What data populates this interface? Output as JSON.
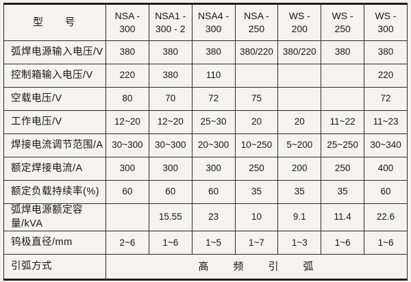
{
  "table": {
    "header": {
      "label": "型　　号",
      "columns": [
        "NSA -\n300",
        "NSA1 -\n300 - 2",
        "NSA4 -\n300",
        "NSA -\n250",
        "WS -\n200",
        "WS -\n250",
        "WS -\n300"
      ]
    },
    "rows": [
      {
        "label": "弧焊电源输入电压/V",
        "values": [
          "380",
          "380",
          "380",
          "380/220",
          "380/220",
          "380",
          "380"
        ]
      },
      {
        "label": "控制箱输入电压/V",
        "values": [
          "220",
          "380",
          "110",
          "",
          "",
          "",
          "220"
        ]
      },
      {
        "label": "空载电压/V",
        "values": [
          "80",
          "70",
          "72",
          "75",
          "",
          "",
          "72"
        ]
      },
      {
        "label": "工作电压/V",
        "values": [
          "12~20",
          "12~20",
          "25~30",
          "20",
          "20",
          "11~22",
          "11~23"
        ]
      },
      {
        "label": "焊接电流调节范围/A",
        "values": [
          "30~300",
          "30~300",
          "20~300",
          "10~250",
          "5~200",
          "25~250",
          "30~340"
        ]
      },
      {
        "label": "额定焊接电流/A",
        "values": [
          "300",
          "300",
          "300",
          "250",
          "200",
          "250",
          "400"
        ]
      },
      {
        "label": "额定负载持续率(%)",
        "values": [
          "60",
          "60",
          "60",
          "35",
          "35",
          "35",
          "60"
        ]
      },
      {
        "label": "弧焊电源额定容量/kVA",
        "values": [
          "",
          "15.55",
          "23",
          "10",
          "9.1",
          "11.4",
          "22.6"
        ]
      },
      {
        "label": "钨极直径/mm",
        "values": [
          "2~6",
          "1~6",
          "1~5",
          "1~7",
          "1~3",
          "1~6",
          "1~6"
        ]
      }
    ],
    "footer": {
      "label": "引弧方式",
      "value": "高　　频　　引　　弧"
    }
  }
}
